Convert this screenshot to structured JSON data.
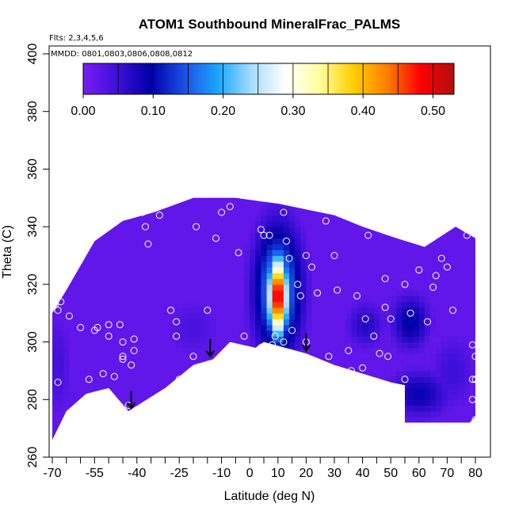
{
  "chart_data": {
    "type": "heatmap",
    "title": "ATOM1 Southbound MineralFrac_PALMS",
    "subtitle_flights": "Flts: 2,3,4,5,6",
    "subtitle_dates": "MMDD: 0801,0803,0806,0808,0812",
    "xlabel": "Latitude (deg N)",
    "ylabel": "Theta (C)",
    "xlim": [
      -70,
      80
    ],
    "ylim": [
      260,
      400
    ],
    "x_ticks": [
      "-70",
      "-55",
      "-40",
      "-25",
      "-10",
      "0",
      "10",
      "20",
      "30",
      "40",
      "50",
      "60",
      "70",
      "80"
    ],
    "x_tick_values": [
      -70,
      -55,
      -40,
      -25,
      -10,
      0,
      10,
      20,
      30,
      40,
      50,
      60,
      70,
      80
    ],
    "y_ticks": [
      "260",
      "280",
      "300",
      "320",
      "340",
      "360",
      "380",
      "400"
    ],
    "y_tick_values": [
      260,
      280,
      300,
      320,
      340,
      360,
      380,
      400
    ],
    "colorbar": {
      "range": [
        0,
        0.53
      ],
      "labels": [
        "0.00",
        "0.10",
        "0.20",
        "0.30",
        "0.40",
        "0.50"
      ],
      "label_values": [
        0,
        0.1,
        0.2,
        0.3,
        0.4,
        0.5
      ],
      "stops": [
        "#7a1cf5",
        "#3e10d8",
        "#0000a8",
        "#1d4fe6",
        "#1aa8ff",
        "#a8dcff",
        "#ffffff",
        "#ffffa0",
        "#ffd000",
        "#ff8000",
        "#ff0000",
        "#b01010"
      ]
    },
    "background_value": 0.02,
    "field_outline": [
      [
        -70,
        266
      ],
      [
        -65,
        276
      ],
      [
        -58,
        282
      ],
      [
        -50,
        284
      ],
      [
        -43,
        276
      ],
      [
        -30,
        284
      ],
      [
        -20,
        292
      ],
      [
        -13,
        294
      ],
      [
        -7,
        300
      ],
      [
        2,
        298
      ],
      [
        5,
        300
      ],
      [
        20,
        296
      ],
      [
        30,
        292
      ],
      [
        50,
        286
      ],
      [
        55,
        285
      ],
      [
        55,
        272
      ],
      [
        78,
        272
      ],
      [
        80,
        274
      ],
      [
        80,
        300
      ],
      [
        80,
        336
      ],
      [
        73,
        340
      ],
      [
        62,
        333
      ],
      [
        52,
        336
      ],
      [
        40,
        340
      ],
      [
        30,
        344
      ],
      [
        20,
        346
      ],
      [
        10,
        348
      ],
      [
        -5,
        350
      ],
      [
        -20,
        350
      ],
      [
        -34,
        345
      ],
      [
        -45,
        342
      ],
      [
        -55,
        335
      ],
      [
        -65,
        318
      ],
      [
        -70,
        310
      ]
    ],
    "features": [
      {
        "lat": 10,
        "theta": 316,
        "sx": 2.5,
        "sy": 10,
        "value": 0.52
      },
      {
        "lat": 10,
        "theta": 318,
        "sx": 6,
        "sy": 16,
        "value": 0.2
      },
      {
        "lat": 57,
        "theta": 307,
        "sx": 5,
        "sy": 7,
        "value": 0.1
      },
      {
        "lat": 41,
        "theta": 306,
        "sx": 5,
        "sy": 6,
        "value": 0.07
      },
      {
        "lat": 60,
        "theta": 282,
        "sx": 8,
        "sy": 6,
        "value": 0.09
      },
      {
        "lat": -68,
        "theta": 292,
        "sx": 4,
        "sy": 14,
        "value": 0.045
      },
      {
        "lat": 72,
        "theta": 290,
        "sx": 6,
        "sy": 10,
        "value": 0.05
      },
      {
        "lat": -20,
        "theta": 305,
        "sx": 8,
        "sy": 8,
        "value": 0.04
      }
    ],
    "points": [
      [
        -69,
        313
      ],
      [
        -68,
        311
      ],
      [
        -67,
        314
      ],
      [
        -68,
        286
      ],
      [
        -67,
        267
      ],
      [
        -64,
        309
      ],
      [
        -60,
        305
      ],
      [
        -57,
        287
      ],
      [
        -55,
        304
      ],
      [
        -54,
        305
      ],
      [
        -52,
        289
      ],
      [
        -52,
        280
      ],
      [
        -50,
        306
      ],
      [
        -50,
        302
      ],
      [
        -48,
        288
      ],
      [
        -48,
        279
      ],
      [
        -46,
        306
      ],
      [
        -45,
        300
      ],
      [
        -45,
        295
      ],
      [
        -45,
        294
      ],
      [
        -43,
        278
      ],
      [
        -42,
        292
      ],
      [
        -41,
        297
      ],
      [
        -41,
        301
      ],
      [
        -38,
        345
      ],
      [
        -37,
        340
      ],
      [
        -36,
        334
      ],
      [
        -32,
        344
      ],
      [
        -28,
        311
      ],
      [
        -26,
        307
      ],
      [
        -26,
        302
      ],
      [
        -25,
        287
      ],
      [
        -25,
        285
      ],
      [
        -20,
        295
      ],
      [
        -19,
        340
      ],
      [
        -15,
        311
      ],
      [
        -12,
        336
      ],
      [
        -10,
        345
      ],
      [
        -7,
        347
      ],
      [
        -4,
        331
      ],
      [
        -2,
        302
      ],
      [
        4,
        350
      ],
      [
        4,
        339
      ],
      [
        4,
        298
      ],
      [
        5,
        337
      ],
      [
        7,
        337
      ],
      [
        8,
        299
      ],
      [
        9,
        302
      ],
      [
        12,
        345
      ],
      [
        12,
        300
      ],
      [
        13,
        335
      ],
      [
        14,
        329
      ],
      [
        15,
        304
      ],
      [
        17,
        320
      ],
      [
        18,
        316
      ],
      [
        20,
        300
      ],
      [
        20,
        330
      ],
      [
        22,
        326
      ],
      [
        24,
        317
      ],
      [
        27,
        342
      ],
      [
        28,
        295
      ],
      [
        30,
        330
      ],
      [
        31,
        318
      ],
      [
        35,
        297
      ],
      [
        36,
        290
      ],
      [
        37,
        345
      ],
      [
        38,
        316
      ],
      [
        40,
        291
      ],
      [
        41,
        308
      ],
      [
        42,
        337
      ],
      [
        44,
        302
      ],
      [
        46,
        296
      ],
      [
        48,
        322
      ],
      [
        48,
        312
      ],
      [
        49,
        295
      ],
      [
        50,
        308
      ],
      [
        55,
        320
      ],
      [
        55,
        287
      ],
      [
        57,
        310
      ],
      [
        60,
        325
      ],
      [
        62,
        338
      ],
      [
        63,
        307
      ],
      [
        65,
        319
      ],
      [
        66,
        323
      ],
      [
        68,
        329
      ],
      [
        70,
        326
      ],
      [
        72,
        311
      ],
      [
        75,
        343
      ],
      [
        77,
        337
      ],
      [
        79,
        299
      ],
      [
        79,
        287
      ],
      [
        80,
        295
      ],
      [
        80,
        287
      ],
      [
        79,
        280
      ],
      [
        80,
        273
      ]
    ],
    "arrows": [
      {
        "lat": -42,
        "theta_top": 283,
        "theta_tip": 277
      },
      {
        "lat": -14,
        "theta_top": 301,
        "theta_tip": 295
      },
      {
        "lat": 20,
        "theta_top": 303,
        "theta_tip": 297
      }
    ]
  }
}
